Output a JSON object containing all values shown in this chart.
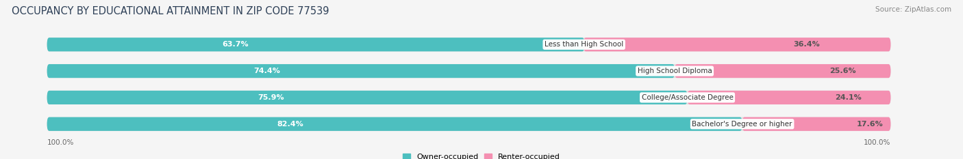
{
  "title": "OCCUPANCY BY EDUCATIONAL ATTAINMENT IN ZIP CODE 77539",
  "source": "Source: ZipAtlas.com",
  "categories": [
    "Less than High School",
    "High School Diploma",
    "College/Associate Degree",
    "Bachelor's Degree or higher"
  ],
  "owner_values": [
    63.7,
    74.4,
    75.9,
    82.4
  ],
  "renter_values": [
    36.4,
    25.6,
    24.1,
    17.6
  ],
  "owner_color": "#4DBFBF",
  "renter_color": "#F48FB1",
  "owner_label": "Owner-occupied",
  "renter_label": "Renter-occupied",
  "background_color": "#f5f5f5",
  "bar_bg_color": "#e0e0e0",
  "title_fontsize": 10.5,
  "source_fontsize": 7.5,
  "axis_label_left": "100.0%",
  "axis_label_right": "100.0%",
  "title_color": "#2e4057",
  "source_color": "#888888",
  "value_color_inside": "#ffffff",
  "value_color_outside": "#555555"
}
